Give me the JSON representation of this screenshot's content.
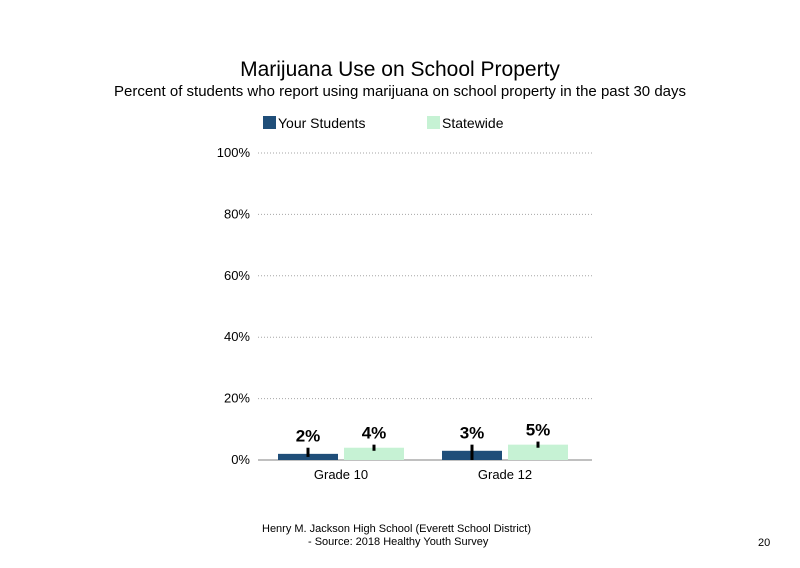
{
  "title": "Marijuana Use on School Property",
  "subtitle": "Percent of students who report using marijuana on school property in the past 30 days",
  "footer": {
    "line1": "Henry M. Jackson High School (Everett School District)",
    "line2": "- Source: 2018 Healthy Youth Survey"
  },
  "page_number": "20",
  "colors": {
    "your_students": "#1f4e79",
    "statewide": "#c6f2d4",
    "gridline": "#a6a6a6",
    "axis": "#808080",
    "error_bar": "#000000"
  },
  "chart_data": {
    "type": "bar",
    "title": "Marijuana Use on School Property",
    "subtitle": "Percent of students who report using marijuana on school property in the past 30 days",
    "categories": [
      "Grade 10",
      "Grade 12"
    ],
    "series": [
      {
        "name": "Your Students",
        "values": [
          2,
          3
        ],
        "labels": [
          "2%",
          "3%"
        ],
        "ci": [
          [
            1,
            4
          ],
          [
            0,
            5
          ]
        ]
      },
      {
        "name": "Statewide",
        "values": [
          4,
          5
        ],
        "labels": [
          "4%",
          "5%"
        ],
        "ci": [
          [
            3,
            5
          ],
          [
            4,
            6
          ]
        ]
      }
    ],
    "ylim": [
      0,
      100
    ],
    "yticks": [
      0,
      20,
      40,
      60,
      80,
      100
    ],
    "ytick_labels": [
      "0%",
      "20%",
      "40%",
      "60%",
      "80%",
      "100%"
    ],
    "grid": "dotted horizontal",
    "legend_position": "top",
    "xlabel": "",
    "ylabel": ""
  }
}
